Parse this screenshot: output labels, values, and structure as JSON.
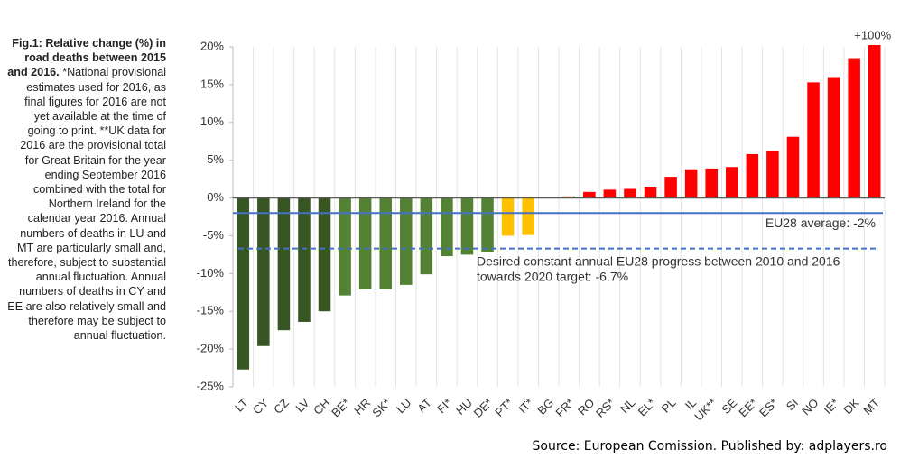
{
  "chart_data": {
    "type": "bar",
    "caption_title": "Fig.1: Relative change (%) in road deaths between 2015 and 2016.",
    "caption_text": "*National provisional estimates used for 2016, as final figures for 2016 are not yet available at the time of going to print. **UK data for 2016 are the provisional total for Great Britain for the year ending September 2016 combined with the total for Northern Ireland for the calendar year 2016. Annual numbers of deaths in LU and MT are particularly small and, therefore, subject to substantial annual fluctuation. Annual numbers of deaths in CY and EE are also relatively small and therefore may be subject to annual fluctuation.",
    "source": "Source: European Comission. Published by: adplayers.ro",
    "categories": [
      "LT",
      "CY",
      "CZ",
      "LV",
      "CH",
      "BE*",
      "HR",
      "SK*",
      "LU",
      "AT",
      "FI*",
      "HU",
      "DE*",
      "PT*",
      "IT*",
      "BG",
      "FR*",
      "RO",
      "RS*",
      "NL",
      "EL*",
      "PL",
      "IL",
      "UK**",
      "SE",
      "EE*",
      "ES*",
      "SI",
      "NO",
      "IE*",
      "DK",
      "MT"
    ],
    "values": [
      -22.7,
      -19.6,
      -17.5,
      -16.4,
      -15.0,
      -12.9,
      -12.1,
      -12.1,
      -11.5,
      -10.1,
      -7.7,
      -7.5,
      -7.2,
      -5.0,
      -4.9,
      0,
      0.2,
      0.8,
      1.1,
      1.2,
      1.5,
      2.8,
      3.8,
      3.9,
      4.1,
      5.8,
      6.2,
      8.1,
      15.3,
      16.0,
      18.5,
      100
    ],
    "value_labels": [
      null,
      null,
      null,
      null,
      null,
      null,
      null,
      null,
      null,
      null,
      null,
      null,
      null,
      null,
      null,
      null,
      null,
      null,
      null,
      null,
      null,
      null,
      null,
      null,
      null,
      null,
      null,
      null,
      null,
      null,
      null,
      "+100%"
    ],
    "colors": [
      "#375623",
      "#375623",
      "#375623",
      "#375623",
      "#375623",
      "#548235",
      "#548235",
      "#548235",
      "#548235",
      "#548235",
      "#548235",
      "#548235",
      "#548235",
      "#ffc000",
      "#ffc000",
      "#ff0000",
      "#ff0000",
      "#ff0000",
      "#ff0000",
      "#ff0000",
      "#ff0000",
      "#ff0000",
      "#ff0000",
      "#ff0000",
      "#ff0000",
      "#ff0000",
      "#ff0000",
      "#ff0000",
      "#ff0000",
      "#ff0000",
      "#ff0000",
      "#ff0000"
    ],
    "ylim": [
      -25,
      20
    ],
    "yticks": [
      {
        "value": 20,
        "label": "20%"
      },
      {
        "value": 15,
        "label": "15%"
      },
      {
        "value": 10,
        "label": "10%"
      },
      {
        "value": 5,
        "label": "5%"
      },
      {
        "value": 0,
        "label": "0%"
      },
      {
        "value": -5,
        "label": "-5%"
      },
      {
        "value": -10,
        "label": "-10%"
      },
      {
        "value": -15,
        "label": "-15%"
      },
      {
        "value": -20,
        "label": "-20%"
      },
      {
        "value": -25,
        "label": "-25%"
      }
    ],
    "grid": true,
    "reference_lines": [
      {
        "value": -2,
        "style": "solid",
        "color": "#4472c4",
        "lines": [
          "EU28 average: -2%"
        ]
      },
      {
        "value": -6.7,
        "style": "dashed",
        "color": "#4472c4",
        "lines": [
          "Desired constant annual EU28 progress between 2010 and 2016",
          "towards 2020 target: -6.7%"
        ]
      }
    ]
  }
}
